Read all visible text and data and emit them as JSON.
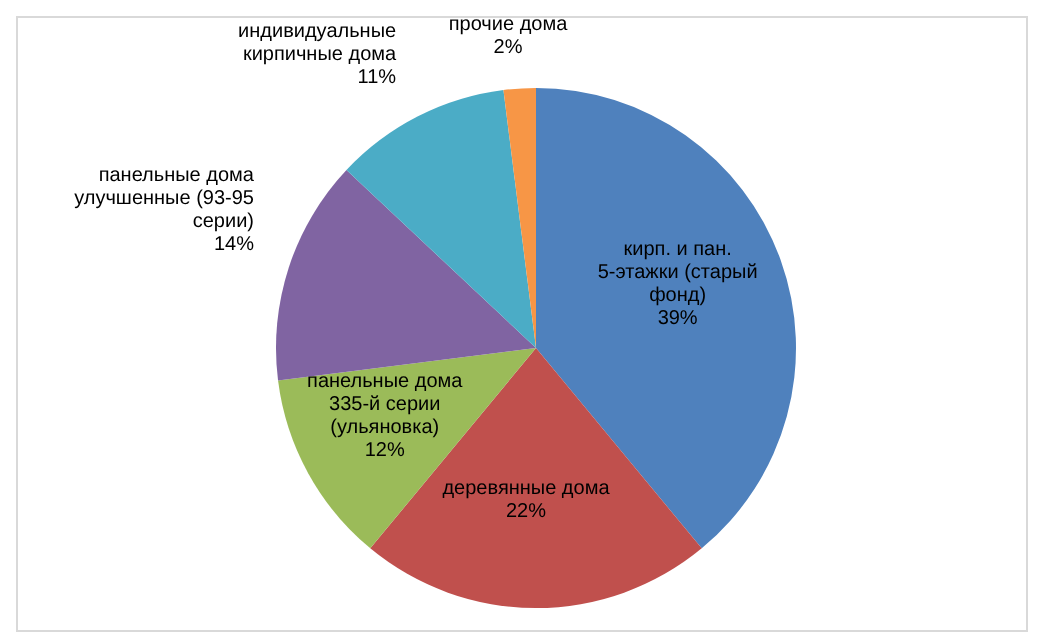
{
  "chart_data": {
    "type": "pie",
    "categories": [
      "кирп. и пан. 5-этажки (старый фонд)",
      "деревянные дома",
      "панельные дома 335-й серии (ульяновка)",
      "панельные дома улучшенные (93-95 серии)",
      "индивидуальные кирпичные дома",
      "прочие дома"
    ],
    "values": [
      39,
      22,
      12,
      14,
      11,
      2
    ],
    "value_labels": [
      "39%",
      "22%",
      "12%",
      "14%",
      "11%",
      "2%"
    ],
    "colors": [
      "#4f81bd",
      "#c0504d",
      "#9bbb59",
      "#8064a2",
      "#4bacc6",
      "#f79646"
    ],
    "legend": false
  }
}
